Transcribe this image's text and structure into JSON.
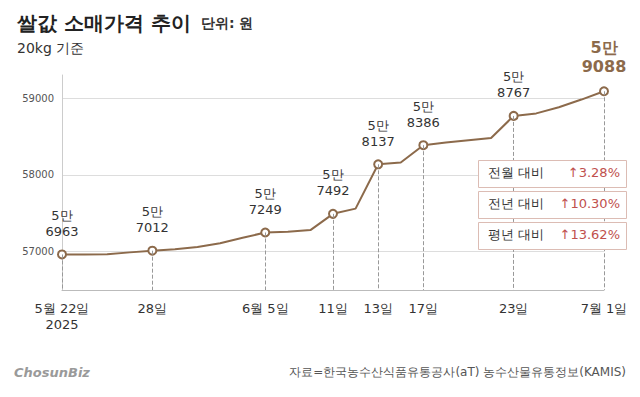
{
  "chart_data": {
    "type": "line",
    "title": "쌀값 소매가격 추이",
    "unit": "단위: 원",
    "subtitle": "20kg 기준",
    "categories": [
      "5월 22일\n2025",
      null,
      null,
      null,
      "28일",
      null,
      null,
      null,
      null,
      "6월 5일",
      null,
      null,
      "11일",
      null,
      "13일",
      null,
      "17일",
      null,
      null,
      null,
      "23일",
      null,
      null,
      null,
      "7월 1일"
    ],
    "values": [
      56963,
      56963,
      56965,
      56990,
      57012,
      57030,
      57060,
      57110,
      57180,
      57249,
      57260,
      57280,
      57492,
      57560,
      58137,
      58160,
      58386,
      58420,
      58450,
      58480,
      58767,
      58800,
      58880,
      58980,
      59088
    ],
    "value_labels": [
      "5만\n6963",
      null,
      null,
      null,
      "5만\n7012",
      null,
      null,
      null,
      null,
      "5만\n7249",
      null,
      null,
      "5만\n7492",
      null,
      "5만\n8137",
      null,
      "5만\n8386",
      null,
      null,
      null,
      "5만\n8767",
      null,
      null,
      null,
      "5만\n9088"
    ],
    "color": "#8c6a4b",
    "ylim": [
      56500,
      59300
    ],
    "yticks": [
      57000,
      58000,
      59000
    ],
    "grid": true,
    "data_labels": true,
    "marker": "circle",
    "annotations": [
      {
        "name": "전월 대비",
        "change": "↑3.28%"
      },
      {
        "name": "전년 대비",
        "change": "↑10.30%"
      },
      {
        "name": "평년 대비",
        "change": "↑13.62%"
      }
    ],
    "source": "자료=한국농수산식품유통공사(aT) 농수산물유통정보(KAMIS)",
    "credit": "ChosunBiz"
  }
}
